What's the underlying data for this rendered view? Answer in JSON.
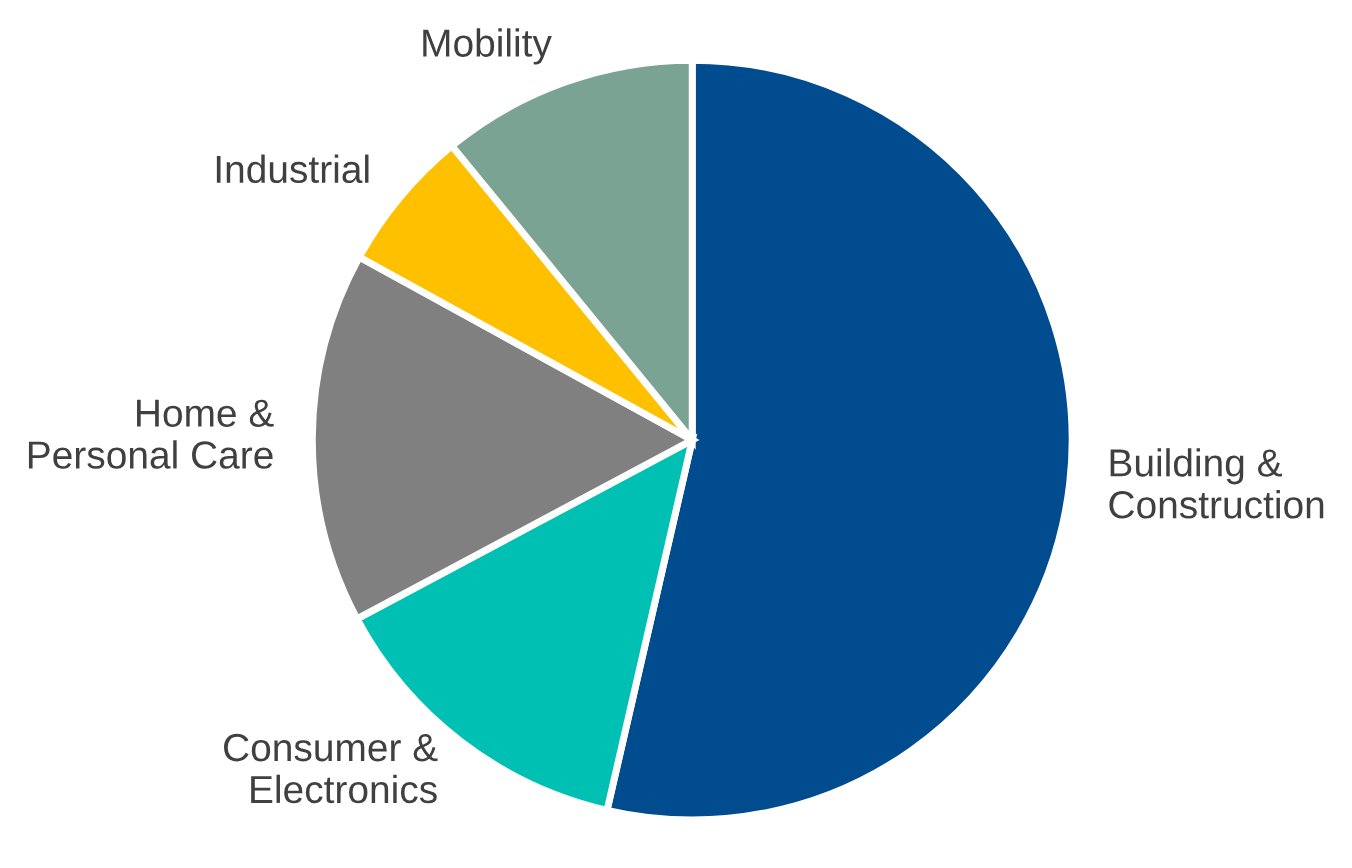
{
  "chart_data": {
    "type": "pie",
    "categories": [
      "Building &\nConstruction",
      "Consumer &\nElectronics",
      "Home &\nPersonal Care",
      "Industrial",
      "Mobility"
    ],
    "values": [
      53.6,
      13.6,
      15.8,
      6.1,
      10.9
    ],
    "colors": [
      "#004c8f",
      "#00bfb3",
      "#808080",
      "#ffc000",
      "#7ba393"
    ],
    "legend": false
  }
}
